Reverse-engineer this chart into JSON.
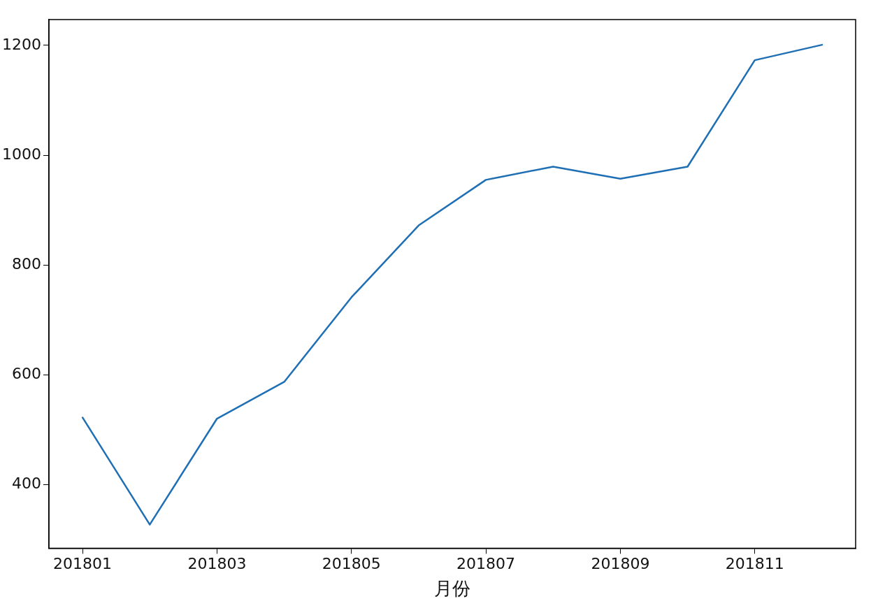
{
  "chart_data": {
    "type": "line",
    "xlabel": "月份",
    "categories": [
      "201801",
      null,
      "201803",
      null,
      "201805",
      null,
      "201807",
      null,
      "201809",
      null,
      "201811",
      null
    ],
    "values": [
      522,
      327,
      520,
      587,
      741,
      872,
      955,
      979,
      957,
      979,
      1173,
      1201
    ],
    "color": "#1f6fb5",
    "ylim": [
      284,
      1247
    ],
    "yticks": [
      400,
      600,
      800,
      1000,
      1200
    ],
    "grid": false,
    "legend": false,
    "marker": "none",
    "line_style": "solid"
  }
}
